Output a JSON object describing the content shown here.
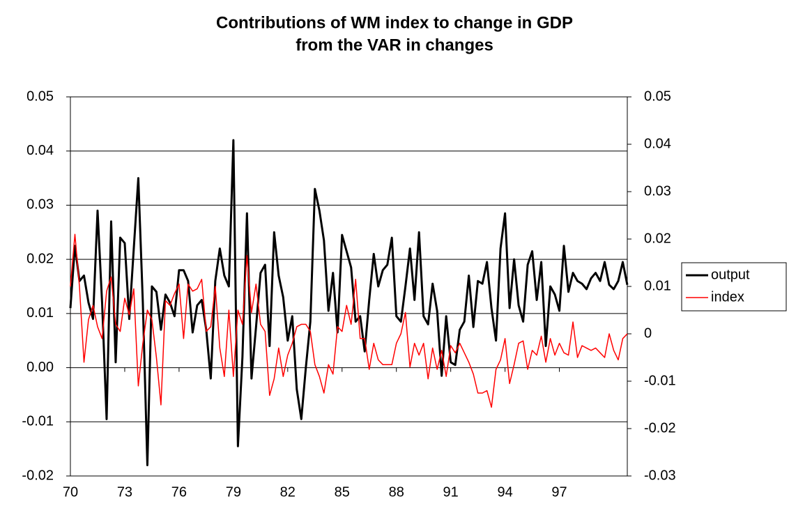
{
  "chart_data": {
    "type": "line",
    "title": [
      "Contributions of WM index to change in GDP",
      "from the VAR in changes"
    ],
    "categories": [
      "70",
      null,
      null,
      null,
      null,
      null,
      null,
      null,
      null,
      null,
      null,
      null,
      "73",
      null,
      null,
      null,
      null,
      null,
      null,
      null,
      null,
      null,
      null,
      null,
      "76",
      null,
      null,
      null,
      null,
      null,
      null,
      null,
      null,
      null,
      null,
      null,
      "79",
      null,
      null,
      null,
      null,
      null,
      null,
      null,
      null,
      null,
      null,
      null,
      "82",
      null,
      null,
      null,
      null,
      null,
      null,
      null,
      null,
      null,
      null,
      null,
      "85",
      null,
      null,
      null,
      null,
      null,
      null,
      null,
      null,
      null,
      null,
      null,
      "88",
      null,
      null,
      null,
      null,
      null,
      null,
      null,
      null,
      null,
      null,
      null,
      "91",
      null,
      null,
      null,
      null,
      null,
      null,
      null,
      null,
      null,
      null,
      null,
      "94",
      null,
      null,
      null,
      null,
      null,
      null,
      null,
      null,
      null,
      null,
      null,
      "97",
      null,
      null,
      null,
      null,
      null,
      null,
      null,
      null,
      null,
      null,
      null,
      null,
      null,
      null,
      null
    ],
    "series": [
      {
        "name": "output",
        "color": "#000000",
        "axis": "y",
        "values": [
          0.011,
          0.0225,
          0.016,
          0.017,
          0.012,
          0.009,
          0.029,
          0.012,
          -0.0095,
          0.027,
          0.001,
          0.024,
          0.023,
          0.009,
          0.022,
          0.035,
          0.012,
          -0.018,
          0.015,
          0.014,
          0.007,
          0.0135,
          0.012,
          0.0095,
          0.018,
          0.018,
          0.016,
          0.0065,
          0.0115,
          0.0125,
          0.007,
          -0.002,
          0.016,
          0.022,
          0.017,
          0.015,
          0.042,
          -0.0145,
          0.002,
          0.0285,
          -0.002,
          0.0075,
          0.0175,
          0.019,
          0.004,
          0.025,
          0.017,
          0.013,
          0.005,
          0.0095,
          -0.004,
          -0.0095,
          0.0,
          0.0085,
          0.033,
          0.029,
          0.0235,
          0.0105,
          0.0175,
          0.0065,
          0.0245,
          0.0215,
          0.0185,
          0.0085,
          0.0095,
          0.003,
          0.0125,
          0.021,
          0.015,
          0.018,
          0.019,
          0.024,
          0.0095,
          0.0085,
          0.015,
          0.022,
          0.0125,
          0.025,
          0.0095,
          0.008,
          0.0155,
          0.0105,
          -0.0015,
          0.0095,
          0.001,
          0.0005,
          0.007,
          0.0085,
          0.017,
          0.0075,
          0.016,
          0.0155,
          0.0195,
          0.011,
          0.005,
          0.022,
          0.0285,
          0.011,
          0.02,
          0.0115,
          0.0085,
          0.019,
          0.0215,
          0.0125,
          0.0195,
          0.004,
          0.015,
          0.0135,
          0.0105,
          0.0225,
          0.014,
          0.0175,
          0.016,
          0.0155,
          0.0145,
          0.0165,
          0.0175,
          0.016,
          0.0195,
          0.0153,
          0.0145,
          0.016,
          0.0195,
          0.0153
        ]
      },
      {
        "name": "index",
        "color": "#ff0000",
        "axis": "y2",
        "values": [
          0.01,
          0.021,
          0.01,
          -0.006,
          0.003,
          0.006,
          0.0015,
          -0.001,
          0.009,
          0.012,
          0.002,
          0.0005,
          0.0075,
          0.004,
          0.0095,
          -0.011,
          -0.002,
          0.005,
          0.003,
          -0.005,
          -0.015,
          0.007,
          0.006,
          0.0085,
          0.0105,
          -0.001,
          0.0105,
          0.009,
          0.0095,
          0.0115,
          0.0005,
          0.0015,
          0.01,
          -0.003,
          -0.009,
          0.005,
          -0.009,
          0.005,
          0.002,
          0.0165,
          0.0045,
          0.0105,
          0.002,
          0.0005,
          -0.013,
          -0.0095,
          -0.003,
          -0.009,
          -0.0045,
          -0.002,
          0.0015,
          0.002,
          0.002,
          0.0005,
          -0.0065,
          -0.009,
          -0.0125,
          -0.0065,
          -0.0085,
          0.0015,
          0.0005,
          0.006,
          0.002,
          0.0115,
          -0.001,
          -0.001,
          -0.0075,
          -0.002,
          -0.0055,
          -0.0065,
          -0.0065,
          -0.0065,
          -0.002,
          0.0,
          0.0045,
          -0.007,
          -0.002,
          -0.0045,
          -0.002,
          -0.0095,
          -0.003,
          -0.0075,
          -0.0035,
          -0.009,
          -0.0025,
          -0.004,
          -0.002,
          -0.004,
          -0.006,
          -0.0085,
          -0.0125,
          -0.0125,
          -0.012,
          -0.0155,
          -0.0075,
          -0.0055,
          -0.001,
          -0.0105,
          -0.0065,
          -0.002,
          -0.0015,
          -0.0075,
          -0.0035,
          -0.0045,
          -0.0005,
          -0.006,
          -0.001,
          -0.0045,
          -0.002,
          -0.004,
          -0.0045,
          0.0025,
          -0.005,
          -0.0025,
          -0.003,
          -0.0035,
          -0.003,
          -0.004,
          -0.005,
          0.0,
          -0.0035,
          -0.0055,
          -0.001,
          0.0
        ]
      }
    ],
    "ylim": [
      -0.02,
      0.05
    ],
    "yticks": [
      -0.02,
      -0.01,
      {
        "value": 0,
        "label": "0.00"
      },
      0.01,
      0.02,
      0.03,
      0.04,
      0.05
    ],
    "y2lim": [
      -0.03,
      0.05
    ],
    "y2ticks": [
      -0.03,
      -0.02,
      -0.01,
      0,
      0.01,
      0.02,
      0.03,
      0.04,
      0.05
    ],
    "grid": true,
    "legend": "right"
  }
}
